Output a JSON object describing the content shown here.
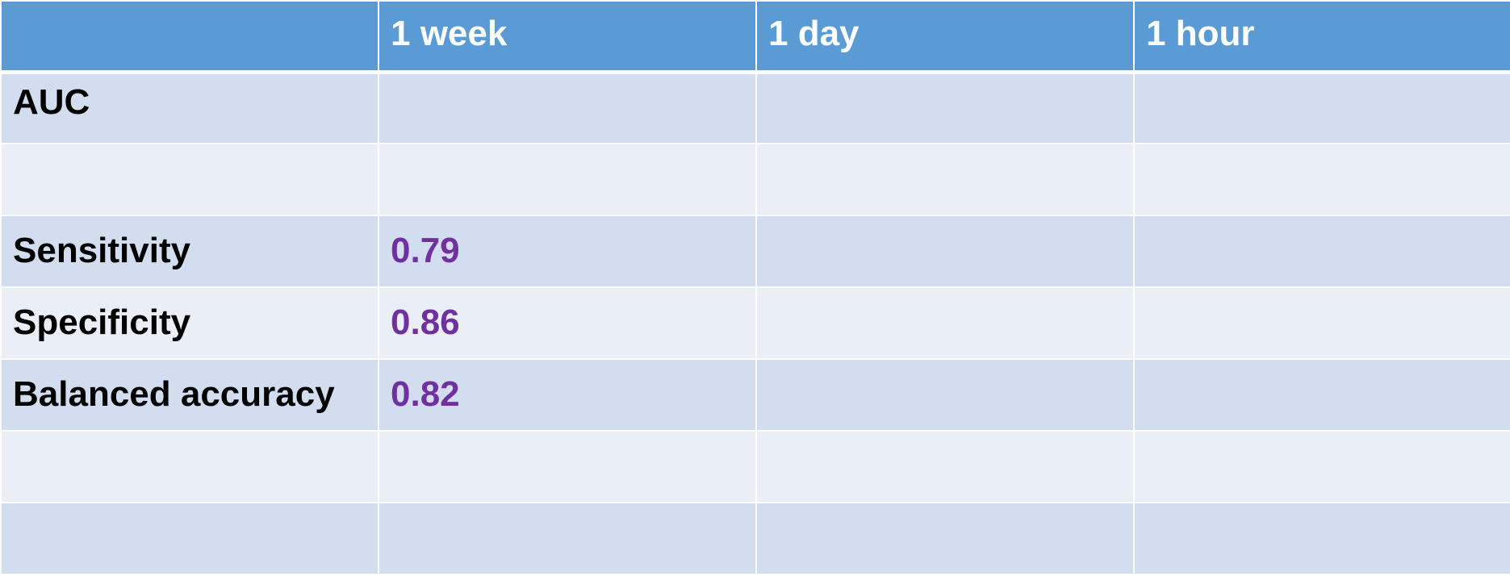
{
  "table": {
    "columns": [
      "",
      "1 week",
      "1 day",
      "1 hour"
    ],
    "rows": [
      {
        "label": "AUC",
        "values": [
          "",
          "",
          ""
        ]
      },
      {
        "label": "",
        "values": [
          "",
          "",
          ""
        ]
      },
      {
        "label": "Sensitivity",
        "values": [
          "0.79",
          "",
          ""
        ]
      },
      {
        "label": "Specificity",
        "values": [
          "0.86",
          "",
          ""
        ]
      },
      {
        "label": "Balanced accuracy",
        "values": [
          "0.82",
          "",
          ""
        ]
      },
      {
        "label": "",
        "values": [
          "",
          "",
          ""
        ]
      },
      {
        "label": "",
        "values": [
          "",
          "",
          ""
        ]
      }
    ]
  },
  "colors": {
    "header_bg": "#5b9bd5",
    "header_text": "#ffffff",
    "row_odd_bg": "#d2deef",
    "row_even_bg": "#eaeff7",
    "value_text": "#7030a0",
    "label_text": "#000000"
  }
}
